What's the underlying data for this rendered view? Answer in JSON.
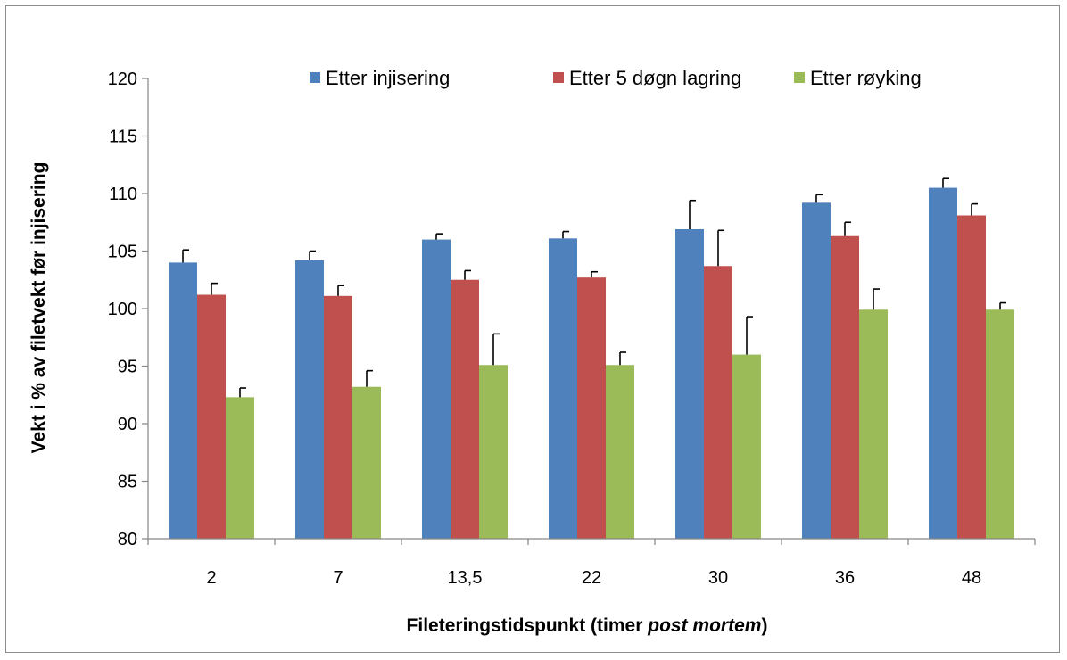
{
  "chart_data": {
    "type": "bar",
    "title": "",
    "xlabel_parts": [
      "Fileteringstidspunkt (timer ",
      "post mortem",
      ")"
    ],
    "ylabel": "Vekt i % av filetvekt før injisering",
    "categories": [
      "2",
      "7",
      "13,5",
      "22",
      "30",
      "36",
      "48"
    ],
    "ylim": [
      80,
      120
    ],
    "yticks": [
      80,
      85,
      90,
      95,
      100,
      105,
      110,
      115,
      120
    ],
    "legend_position": "top",
    "grid": false,
    "series": [
      {
        "name": "Etter injisering",
        "color": "#4f81bd",
        "values": [
          104.0,
          104.2,
          106.0,
          106.1,
          106.9,
          109.2,
          110.5
        ],
        "errors": [
          1.1,
          0.8,
          0.5,
          0.6,
          2.5,
          0.7,
          0.8
        ]
      },
      {
        "name": "Etter 5 døgn lagring",
        "color": "#c0504d",
        "values": [
          101.2,
          101.1,
          102.5,
          102.7,
          103.7,
          106.3,
          108.1
        ],
        "errors": [
          1.0,
          0.9,
          0.8,
          0.5,
          3.1,
          1.2,
          1.0
        ]
      },
      {
        "name": "Etter røyking",
        "color": "#9bbb59",
        "values": [
          92.3,
          93.2,
          95.1,
          95.1,
          96.0,
          99.9,
          99.9
        ],
        "errors": [
          0.8,
          1.4,
          2.7,
          1.1,
          3.3,
          1.8,
          0.6
        ]
      }
    ]
  }
}
